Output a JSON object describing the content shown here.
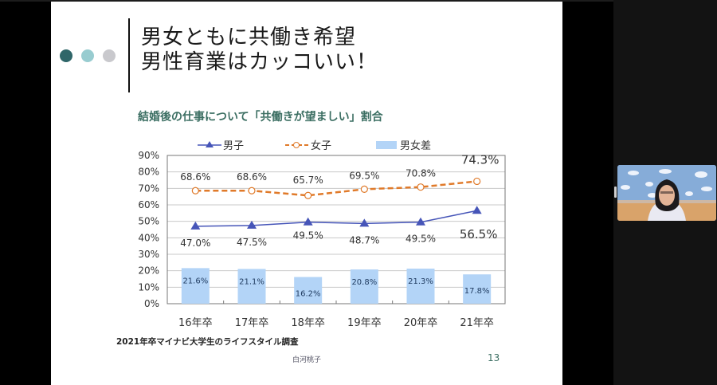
{
  "slide": {
    "title_line1": "男女ともに共働き希望",
    "title_line2": "男性育業はカッコいい！",
    "subtitle": "結婚後の仕事について「共働きが望ましい」割合",
    "source": "2021年卒マイナビ大学生のライフスタイル調査",
    "author": "白河桃子",
    "page_number": "13",
    "decor_dots": [
      "#2f6669",
      "#98ccd0",
      "#c9c9cd"
    ]
  },
  "chart_data": {
    "type": "line+bar",
    "title": "結婚後の仕事について「共働きが望ましい」割合",
    "categories": [
      "16年卒",
      "17年卒",
      "18年卒",
      "19年卒",
      "20年卒",
      "21年卒"
    ],
    "series": [
      {
        "name": "男子",
        "kind": "line",
        "marker": "triangle",
        "color": "#4655b8",
        "values": [
          47.0,
          47.5,
          49.5,
          48.7,
          49.5,
          56.5
        ],
        "labels": [
          "47.0%",
          "47.5%",
          "49.5%",
          "48.7%",
          "49.5%",
          "56.5%"
        ]
      },
      {
        "name": "女子",
        "kind": "line",
        "style": "dashed",
        "marker": "circle-open",
        "color": "#e07a2a",
        "values": [
          68.6,
          68.6,
          65.7,
          69.5,
          70.8,
          74.3
        ],
        "labels": [
          "68.6%",
          "68.6%",
          "65.7%",
          "69.5%",
          "70.8%",
          "74.3%"
        ]
      },
      {
        "name": "男女差",
        "kind": "bar",
        "color": "#b3d4f7",
        "values": [
          21.6,
          21.1,
          16.2,
          20.8,
          21.3,
          17.8
        ],
        "labels": [
          "21.6%",
          "21.1%",
          "16.2%",
          "20.8%",
          "21.3%",
          "17.8%"
        ]
      }
    ],
    "yticks": [
      "0%",
      "10%",
      "20%",
      "30%",
      "40%",
      "50%",
      "60%",
      "70%",
      "80%",
      "90%"
    ],
    "ylim": [
      0,
      90
    ],
    "grid": true,
    "legend_position": "top",
    "xlabel": "",
    "ylabel": ""
  },
  "video_tile": {
    "label": "participant-video"
  }
}
